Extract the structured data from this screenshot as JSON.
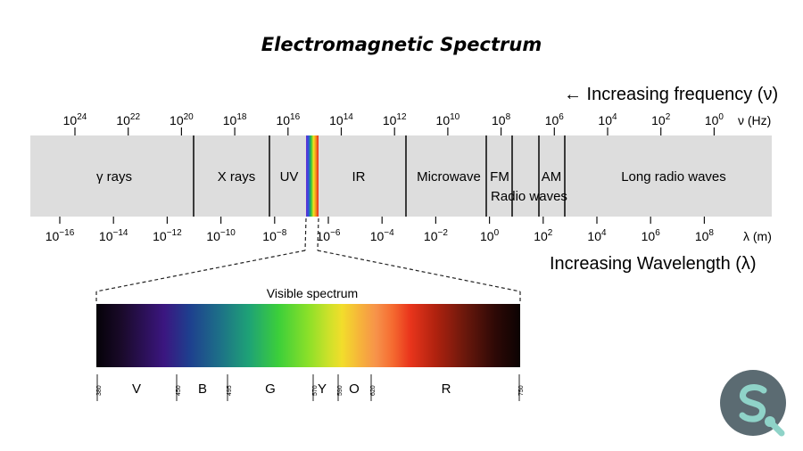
{
  "title": "Electromagnetic Spectrum",
  "frequency_direction": "← Increasing frequency (ν)",
  "wavelength_direction": "Increasing Wavelength (λ)",
  "frequency_unit": "ν (Hz)",
  "wavelength_unit": "λ (m)",
  "frequency_ticks": [
    {
      "base": "10",
      "exp": "24"
    },
    {
      "base": "10",
      "exp": "22"
    },
    {
      "base": "10",
      "exp": "20"
    },
    {
      "base": "10",
      "exp": "18"
    },
    {
      "base": "10",
      "exp": "16"
    },
    {
      "base": "10",
      "exp": "14"
    },
    {
      "base": "10",
      "exp": "12"
    },
    {
      "base": "10",
      "exp": "10"
    },
    {
      "base": "10",
      "exp": "8"
    },
    {
      "base": "10",
      "exp": "6"
    },
    {
      "base": "10",
      "exp": "4"
    },
    {
      "base": "10",
      "exp": "2"
    },
    {
      "base": "10",
      "exp": "0"
    }
  ],
  "wavelength_ticks": [
    {
      "base": "10",
      "exp": "−16"
    },
    {
      "base": "10",
      "exp": "−14"
    },
    {
      "base": "10",
      "exp": "−12"
    },
    {
      "base": "10",
      "exp": "−10"
    },
    {
      "base": "10",
      "exp": "−8"
    },
    {
      "base": "10",
      "exp": "−6"
    },
    {
      "base": "10",
      "exp": "−4"
    },
    {
      "base": "10",
      "exp": "−2"
    },
    {
      "base": "10",
      "exp": "0"
    },
    {
      "base": "10",
      "exp": "2"
    },
    {
      "base": "10",
      "exp": "4"
    },
    {
      "base": "10",
      "exp": "6"
    },
    {
      "base": "10",
      "exp": "8"
    }
  ],
  "regions": [
    {
      "id": "gamma",
      "label": "γ rays"
    },
    {
      "id": "xray",
      "label": "X rays"
    },
    {
      "id": "uv",
      "label": "UV"
    },
    {
      "id": "ir",
      "label": "IR"
    },
    {
      "id": "microwave",
      "label": "Microwave"
    },
    {
      "id": "fm",
      "label": "FM"
    },
    {
      "id": "am",
      "label": "AM"
    },
    {
      "id": "radio",
      "label": "Radio waves"
    },
    {
      "id": "longradio",
      "label": "Long radio waves"
    }
  ],
  "visible": {
    "title": "Visible spectrum",
    "wavelengths_nm": [
      "380",
      "450",
      "495",
      "570",
      "590",
      "620",
      "750"
    ],
    "bands": [
      {
        "label": "V"
      },
      {
        "label": "B"
      },
      {
        "label": "G"
      },
      {
        "label": "Y"
      },
      {
        "label": "O"
      },
      {
        "label": "R"
      }
    ]
  },
  "colors": {
    "band_fill": "#dddddd",
    "divider": "#111111",
    "logo_outer": "#5b6b72",
    "logo_inner": "#8fd3c8"
  },
  "logo": {
    "icon": "search-brand-logo-icon"
  }
}
